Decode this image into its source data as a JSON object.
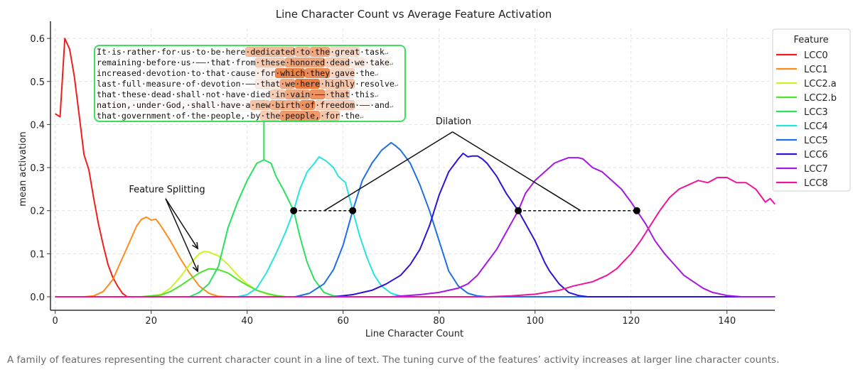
{
  "chart_data": {
    "type": "line",
    "title": "Line Character Count vs Average Feature Activation",
    "xlabel": "Line Character Count",
    "ylabel": "mean activation",
    "xlim": [
      -1,
      150
    ],
    "ylim": [
      -0.03,
      0.63
    ],
    "xticks": [
      0,
      20,
      40,
      60,
      80,
      100,
      120,
      140
    ],
    "yticks": [
      "0.0",
      "0.1",
      "0.2",
      "0.3",
      "0.4",
      "0.5",
      "0.6"
    ],
    "grid": true,
    "legend": {
      "title": "Feature",
      "placement": "right"
    },
    "series": [
      {
        "name": "LCC0",
        "color": "#f21d1d",
        "points": [
          [
            0,
            0.425
          ],
          [
            1,
            0.418
          ],
          [
            2,
            0.6
          ],
          [
            3,
            0.575
          ],
          [
            4,
            0.51
          ],
          [
            5,
            0.42
          ],
          [
            6,
            0.33
          ],
          [
            7,
            0.295
          ],
          [
            8,
            0.23
          ],
          [
            9,
            0.17
          ],
          [
            10,
            0.12
          ],
          [
            11,
            0.075
          ],
          [
            12,
            0.045
          ],
          [
            13,
            0.025
          ],
          [
            14,
            0.008
          ],
          [
            15,
            0
          ],
          [
            150,
            0
          ]
        ]
      },
      {
        "name": "LCC1",
        "color": "#ff8c1a",
        "points": [
          [
            0,
            0
          ],
          [
            6,
            0
          ],
          [
            8,
            0.002
          ],
          [
            10,
            0.012
          ],
          [
            12,
            0.04
          ],
          [
            14,
            0.09
          ],
          [
            16,
            0.14
          ],
          [
            17,
            0.165
          ],
          [
            18,
            0.18
          ],
          [
            19,
            0.185
          ],
          [
            20,
            0.178
          ],
          [
            21,
            0.18
          ],
          [
            22,
            0.165
          ],
          [
            24,
            0.13
          ],
          [
            26,
            0.09
          ],
          [
            28,
            0.055
          ],
          [
            30,
            0.025
          ],
          [
            32,
            0.008
          ],
          [
            34,
            0.001
          ],
          [
            36,
            0
          ],
          [
            150,
            0
          ]
        ]
      },
      {
        "name": "LCC2.a",
        "color": "#cdf227",
        "points": [
          [
            0,
            0
          ],
          [
            18,
            0
          ],
          [
            22,
            0.005
          ],
          [
            24,
            0.02
          ],
          [
            26,
            0.045
          ],
          [
            28,
            0.075
          ],
          [
            30,
            0.1
          ],
          [
            31,
            0.105
          ],
          [
            32,
            0.104
          ],
          [
            34,
            0.095
          ],
          [
            36,
            0.075
          ],
          [
            38,
            0.05
          ],
          [
            40,
            0.03
          ],
          [
            42,
            0.015
          ],
          [
            44,
            0.007
          ],
          [
            46,
            0.002
          ],
          [
            48,
            0
          ],
          [
            150,
            0
          ]
        ]
      },
      {
        "name": "LCC2.b",
        "color": "#4ee42c",
        "points": [
          [
            0,
            0
          ],
          [
            18,
            0
          ],
          [
            22,
            0.004
          ],
          [
            24,
            0.012
          ],
          [
            26,
            0.025
          ],
          [
            28,
            0.04
          ],
          [
            30,
            0.055
          ],
          [
            32,
            0.065
          ],
          [
            34,
            0.063
          ],
          [
            36,
            0.055
          ],
          [
            38,
            0.04
          ],
          [
            40,
            0.027
          ],
          [
            42,
            0.015
          ],
          [
            44,
            0.008
          ],
          [
            46,
            0.003
          ],
          [
            48,
            0
          ],
          [
            150,
            0
          ]
        ]
      },
      {
        "name": "LCC3",
        "color": "#2ae05e",
        "points": [
          [
            0,
            0
          ],
          [
            28,
            0
          ],
          [
            30,
            0.01
          ],
          [
            32,
            0.03
          ],
          [
            34,
            0.07
          ],
          [
            36,
            0.16
          ],
          [
            38,
            0.22
          ],
          [
            40,
            0.27
          ],
          [
            42,
            0.31
          ],
          [
            43.5,
            0.318
          ],
          [
            45,
            0.31
          ],
          [
            46,
            0.28
          ],
          [
            47.5,
            0.25
          ],
          [
            49.7,
            0.2
          ],
          [
            51,
            0.14
          ],
          [
            52.5,
            0.08
          ],
          [
            54,
            0.04
          ],
          [
            56,
            0.01
          ],
          [
            58,
            0.002
          ],
          [
            60,
            0
          ],
          [
            150,
            0
          ]
        ]
      },
      {
        "name": "LCC4",
        "color": "#27e3e0",
        "points": [
          [
            0,
            0
          ],
          [
            38,
            0
          ],
          [
            40,
            0.005
          ],
          [
            42,
            0.02
          ],
          [
            44,
            0.055
          ],
          [
            46,
            0.1
          ],
          [
            48,
            0.15
          ],
          [
            49.7,
            0.2
          ],
          [
            51,
            0.25
          ],
          [
            52.5,
            0.29
          ],
          [
            54,
            0.31
          ],
          [
            55,
            0.325
          ],
          [
            56.5,
            0.315
          ],
          [
            58,
            0.3
          ],
          [
            59,
            0.28
          ],
          [
            60.5,
            0.265
          ],
          [
            62,
            0.2
          ],
          [
            63.5,
            0.14
          ],
          [
            65,
            0.09
          ],
          [
            66.5,
            0.05
          ],
          [
            68,
            0.025
          ],
          [
            70,
            0.008
          ],
          [
            72,
            0.002
          ],
          [
            74,
            0
          ],
          [
            150,
            0
          ]
        ]
      },
      {
        "name": "LCC5",
        "color": "#1f70e6",
        "points": [
          [
            0,
            0
          ],
          [
            50,
            0
          ],
          [
            53,
            0.008
          ],
          [
            56,
            0.03
          ],
          [
            58,
            0.063
          ],
          [
            60,
            0.12
          ],
          [
            62,
            0.2
          ],
          [
            64,
            0.27
          ],
          [
            66,
            0.31
          ],
          [
            68,
            0.34
          ],
          [
            70,
            0.358
          ],
          [
            71,
            0.35
          ],
          [
            72,
            0.34
          ],
          [
            74,
            0.31
          ],
          [
            76,
            0.26
          ],
          [
            78,
            0.2
          ],
          [
            80,
            0.13
          ],
          [
            82,
            0.06
          ],
          [
            84,
            0.025
          ],
          [
            86,
            0.008
          ],
          [
            88,
            0.002
          ],
          [
            90,
            0
          ],
          [
            150,
            0
          ]
        ]
      },
      {
        "name": "LCC6",
        "color": "#2b14d8",
        "points": [
          [
            0,
            0
          ],
          [
            58,
            0
          ],
          [
            62,
            0.005
          ],
          [
            66,
            0.015
          ],
          [
            69,
            0.03
          ],
          [
            72,
            0.05
          ],
          [
            74,
            0.075
          ],
          [
            76,
            0.11
          ],
          [
            78,
            0.165
          ],
          [
            80,
            0.236
          ],
          [
            82,
            0.29
          ],
          [
            84,
            0.32
          ],
          [
            85,
            0.333
          ],
          [
            86,
            0.325
          ],
          [
            87,
            0.327
          ],
          [
            88,
            0.327
          ],
          [
            89,
            0.32
          ],
          [
            90,
            0.31
          ],
          [
            92,
            0.28
          ],
          [
            94,
            0.24
          ],
          [
            96.5,
            0.2
          ],
          [
            98,
            0.17
          ],
          [
            100,
            0.13
          ],
          [
            102,
            0.08
          ],
          [
            103,
            0.06
          ],
          [
            105,
            0.03
          ],
          [
            107,
            0.01
          ],
          [
            109,
            0.003
          ],
          [
            111,
            0
          ],
          [
            150,
            0
          ]
        ]
      },
      {
        "name": "LCC7",
        "color": "#a617e6",
        "points": [
          [
            0,
            0
          ],
          [
            70,
            0
          ],
          [
            76,
            0.005
          ],
          [
            80,
            0.01
          ],
          [
            84,
            0.02
          ],
          [
            86,
            0.03
          ],
          [
            88,
            0.05
          ],
          [
            90,
            0.08
          ],
          [
            92,
            0.11
          ],
          [
            94,
            0.15
          ],
          [
            96.5,
            0.2
          ],
          [
            98,
            0.24
          ],
          [
            100,
            0.27
          ],
          [
            102,
            0.29
          ],
          [
            104,
            0.31
          ],
          [
            105,
            0.315
          ],
          [
            107,
            0.323
          ],
          [
            109,
            0.323
          ],
          [
            110,
            0.32
          ],
          [
            112,
            0.3
          ],
          [
            114,
            0.29
          ],
          [
            116,
            0.27
          ],
          [
            118,
            0.25
          ],
          [
            120,
            0.22
          ],
          [
            121.2,
            0.2
          ],
          [
            123,
            0.17
          ],
          [
            125,
            0.13
          ],
          [
            127,
            0.1
          ],
          [
            129,
            0.075
          ],
          [
            131,
            0.05
          ],
          [
            133,
            0.035
          ],
          [
            135,
            0.02
          ],
          [
            137,
            0.01
          ],
          [
            140,
            0.003
          ],
          [
            143,
            0
          ],
          [
            150,
            0
          ]
        ]
      },
      {
        "name": "LCC8",
        "color": "#f0149b",
        "points": [
          [
            0,
            0
          ],
          [
            90,
            0
          ],
          [
            95,
            0.002
          ],
          [
            100,
            0.006
          ],
          [
            105,
            0.015
          ],
          [
            108,
            0.025
          ],
          [
            112,
            0.035
          ],
          [
            115,
            0.05
          ],
          [
            117,
            0.065
          ],
          [
            120,
            0.1
          ],
          [
            122,
            0.13
          ],
          [
            124,
            0.165
          ],
          [
            126,
            0.2
          ],
          [
            128,
            0.23
          ],
          [
            130,
            0.25
          ],
          [
            132,
            0.26
          ],
          [
            134,
            0.27
          ],
          [
            136,
            0.265
          ],
          [
            138,
            0.277
          ],
          [
            140,
            0.277
          ],
          [
            142,
            0.265
          ],
          [
            144,
            0.265
          ],
          [
            146,
            0.25
          ],
          [
            147,
            0.235
          ],
          [
            148,
            0.22
          ],
          [
            149,
            0.228
          ],
          [
            150,
            0.215
          ]
        ]
      }
    ],
    "annotations": [
      {
        "type": "text-arrows",
        "text": "Feature Splitting",
        "at": [
          23.3,
          0.249
        ],
        "from": [
          23.0,
          0.228
        ],
        "to": [
          [
            29.7,
            0.112
          ],
          [
            29.7,
            0.059
          ]
        ]
      },
      {
        "type": "text-lines",
        "text": "Dilation",
        "at": [
          83,
          0.407
        ],
        "apex": [
          82.8,
          0.383
        ],
        "to": [
          [
            56.1,
            0.2
          ],
          [
            109.5,
            0.2
          ]
        ]
      },
      {
        "type": "width-marker",
        "points": [
          [
            49.7,
            0.2
          ],
          [
            62,
            0.2
          ]
        ]
      },
      {
        "type": "width-marker",
        "points": [
          [
            96.5,
            0.2
          ],
          [
            121.2,
            0.2
          ]
        ]
      }
    ],
    "inset_example": {
      "attached_to": "LCC3",
      "highlight_color": "#e8661e",
      "lines": [
        [
          [
            "It·is·rather·for·us·to·be·here",
            0
          ],
          [
            "·dedicated",
            0.45
          ],
          [
            "·to",
            0.5
          ],
          [
            "·the",
            0.6
          ],
          [
            "·great",
            0.25
          ],
          [
            "·task",
            0
          ]
        ],
        [
          [
            "remaining·before·us·——·that·from",
            0
          ],
          [
            "·these",
            0.35
          ],
          [
            "·honored",
            0.62
          ],
          [
            "·dead",
            0.35
          ],
          [
            "·we",
            0.15
          ],
          [
            "·take",
            0.05
          ]
        ],
        [
          [
            "increased·devotion·to·that·cause",
            0
          ],
          [
            "·for",
            0.1
          ],
          [
            "·which",
            0.85
          ],
          [
            "·they",
            0.8
          ],
          [
            "·gave",
            0.3
          ],
          [
            "·the",
            0
          ]
        ],
        [
          [
            "last·full·measure·of·devotion·——",
            0
          ],
          [
            "·that",
            0.15
          ],
          [
            "·we",
            0.6
          ],
          [
            "·here",
            0.9
          ],
          [
            "·highly",
            0.4
          ],
          [
            "·resolve",
            0
          ]
        ],
        [
          [
            "that·these·dead·shall·not·have·died",
            0
          ],
          [
            "·in",
            0.35
          ],
          [
            "·vain",
            0.6
          ],
          [
            "·——",
            0.75
          ],
          [
            "·that",
            0.4
          ],
          [
            "·this",
            0
          ]
        ],
        [
          [
            "nation,·under·God,·shall·have·a",
            0.04
          ],
          [
            "·new",
            0.4
          ],
          [
            "·birth",
            0.55
          ],
          [
            "·of",
            0.75
          ],
          [
            "·freedom",
            0.35
          ],
          [
            "·——",
            0.05
          ],
          [
            "·and",
            0
          ]
        ],
        [
          [
            "that·government·of·the·people,·by",
            0
          ],
          [
            "·the",
            0.35
          ],
          [
            "·people,",
            0.7
          ],
          [
            "·for",
            0.4
          ],
          [
            "·the",
            0
          ]
        ]
      ],
      "line_end_glyph": "↵"
    }
  },
  "caption": "A family of features representing the current character count in a line of text. The tuning curve of the features’ activity increases at larger line character counts."
}
